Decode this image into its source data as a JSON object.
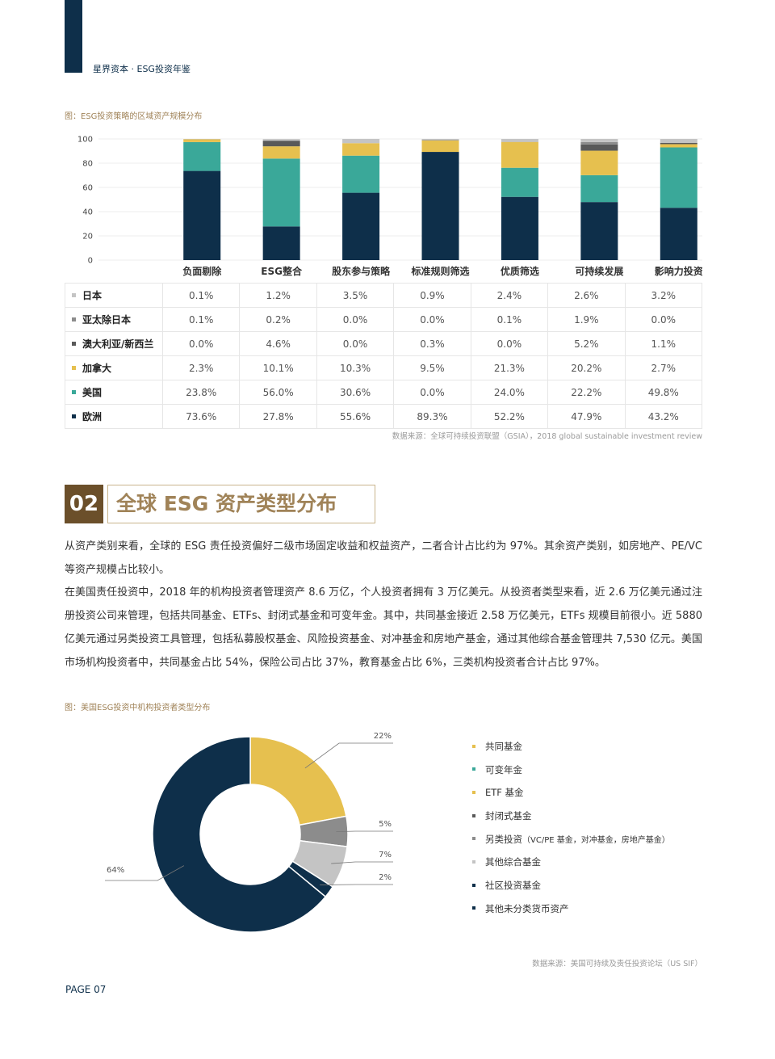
{
  "header": {
    "brand": "星界资本 · ESG投资年鉴"
  },
  "figure1": {
    "caption": "图：ESG投资策略的区域资产规模分布",
    "source": "数据来源：全球可持续投资联盟（GSIA），2018 global sustainable investment review"
  },
  "chart_data": [
    {
      "type": "bar",
      "stacked": true,
      "categories": [
        "负面剔除",
        "ESG整合",
        "股东参与策略",
        "标准规则筛选",
        "优质筛选",
        "可持续发展",
        "影响力投资"
      ],
      "series": [
        {
          "name": "欧洲",
          "color": "#0e2f4a",
          "values": [
            73.6,
            27.8,
            55.6,
            89.3,
            52.2,
            47.9,
            43.2
          ],
          "labels": [
            "73.6%",
            "27.8%",
            "55.6%",
            "89.3%",
            "52.2%",
            "47.9%",
            "43.2%"
          ]
        },
        {
          "name": "美国",
          "color": "#3aa899",
          "values": [
            23.8,
            56.0,
            30.6,
            0.0,
            24.0,
            22.2,
            49.8
          ],
          "labels": [
            "23.8%",
            "56.0%",
            "30.6%",
            "0.0%",
            "24.0%",
            "22.2%",
            "49.8%"
          ]
        },
        {
          "name": "加拿大",
          "color": "#e6c04f",
          "values": [
            2.3,
            10.1,
            10.3,
            9.5,
            21.3,
            20.2,
            2.7
          ],
          "labels": [
            "2.3%",
            "10.1%",
            "10.3%",
            "9.5%",
            "21.3%",
            "20.2%",
            "2.7%"
          ]
        },
        {
          "name": "澳大利亚/新西兰",
          "color": "#595959",
          "values": [
            0.0,
            4.6,
            0.0,
            0.3,
            0.0,
            5.2,
            1.1
          ],
          "labels": [
            "0.0%",
            "4.6%",
            "0.0%",
            "0.3%",
            "0.0%",
            "5.2%",
            "1.1%"
          ]
        },
        {
          "name": "亚太除日本",
          "color": "#8c8c8c",
          "values": [
            0.1,
            0.2,
            0.0,
            0.0,
            0.1,
            1.9,
            0.0
          ],
          "labels": [
            "0.1%",
            "0.2%",
            "0.0%",
            "0.0%",
            "0.1%",
            "1.9%",
            "0.0%"
          ]
        },
        {
          "name": "日本",
          "color": "#c4c4c4",
          "values": [
            0.1,
            1.2,
            3.5,
            0.9,
            2.4,
            2.6,
            3.2
          ],
          "labels": [
            "0.1%",
            "1.2%",
            "3.5%",
            "0.9%",
            "2.4%",
            "2.6%",
            "3.2%"
          ]
        }
      ],
      "table_row_order": [
        "日本",
        "亚太除日本",
        "澳大利亚/新西兰",
        "加拿大",
        "美国",
        "欧洲"
      ],
      "ylim": [
        0,
        100
      ],
      "yticks": [
        "100",
        "80",
        "60",
        "40",
        "20",
        "0"
      ],
      "grid": true
    },
    {
      "type": "pie",
      "style": "donut",
      "slices": [
        {
          "name": "共同基金",
          "value": 22,
          "label": "22%",
          "color": "#e6c04f"
        },
        {
          "name": "封闭式基金",
          "value": 5,
          "label": "5%",
          "color": "#8c8c8c"
        },
        {
          "name": "另类投资",
          "value": 7,
          "label": "7%",
          "color": "#c4c4c4"
        },
        {
          "name": "社区投资基金",
          "value": 2,
          "label": "2%",
          "color": "#0e2f4a"
        },
        {
          "name": "其他未分类货币资产",
          "value": 64,
          "label": "64%",
          "color": "#0e2f4a"
        }
      ]
    }
  ],
  "section2": {
    "number": "02",
    "title": "全球 ESG 资产类型分布",
    "paragraph1": "从资产类别来看，全球的 ESG 责任投资偏好二级市场固定收益和权益资产，二者合计占比约为 97%。其余资产类别，如房地产、PE/VC 等资产规模占比较小。",
    "paragraph2": "在美国责任投资中，2018 年的机构投资者管理资产 8.6 万亿，个人投资者拥有 3 万亿美元。从投资者类型来看，近 2.6 万亿美元通过注册投资公司来管理，包括共同基金、ETFs、封闭式基金和可变年金。其中，共同基金接近 2.58 万亿美元，ETFs 规模目前很小。近 5880 亿美元通过另类投资工具管理，包括私募股权基金、风险投资基金、对冲基金和房地产基金，通过其他综合基金管理共 7,530 亿元。美国市场机构投资者中，共同基金占比 54%，保险公司占比 37%，教育基金占比 6%，三类机构投资者合计占比 97%。"
  },
  "figure2": {
    "caption": "图：美国ESG投资中机构投资者类型分布",
    "source": "数据来源：美国可持续及责任投资论坛（US SIF）",
    "legend": [
      {
        "label": "共同基金",
        "color": "#e6c04f"
      },
      {
        "label": "可变年金",
        "color": "#3aa899"
      },
      {
        "label": "ETF 基金",
        "color": "#e6c04f"
      },
      {
        "label": "封闭式基金",
        "color": "#595959"
      },
      {
        "label": "另类投资",
        "sub": "（VC/PE 基金，对冲基金，房地产基金）",
        "color": "#8c8c8c"
      },
      {
        "label": "其他综合基金",
        "color": "#c4c4c4"
      },
      {
        "label": "社区投资基金",
        "color": "#0e2f4a"
      },
      {
        "label": "其他未分类货币资产",
        "color": "#0e2f4a"
      }
    ]
  },
  "footer": {
    "page": "PAGE 07"
  }
}
